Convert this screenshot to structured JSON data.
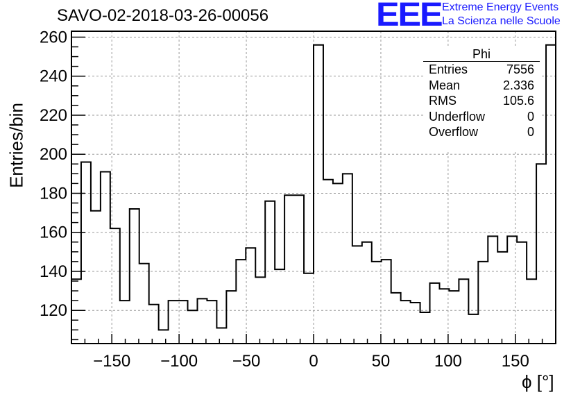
{
  "title": "SAVO-02-2018-03-26-00056",
  "logo": {
    "text": "EEE",
    "line1": "Extreme Energy Events",
    "line2": "La Scienza nelle Scuole",
    "color": "#1a1aff"
  },
  "stats": {
    "name": "Phi",
    "rows": [
      {
        "label": "Entries",
        "value": "7556"
      },
      {
        "label": "Mean",
        "value": "2.336"
      },
      {
        "label": "RMS",
        "value": "105.6"
      },
      {
        "label": "Underflow",
        "value": "0"
      },
      {
        "label": "Overflow",
        "value": "0"
      }
    ]
  },
  "chart_data": {
    "type": "bar",
    "histogram": "step",
    "title": "SAVO-02-2018-03-26-00056",
    "xlabel": "ϕ [°]",
    "ylabel": "Entries/bin",
    "xlim": [
      -180,
      180
    ],
    "ylim": [
      103,
      263
    ],
    "bin_width": 7.2,
    "grid": true,
    "xticks": [
      -150,
      -100,
      -50,
      0,
      50,
      100,
      150
    ],
    "xtick_labels": [
      "−150",
      "−100",
      "−50",
      "0",
      "50",
      "100",
      "150"
    ],
    "yticks": [
      120,
      140,
      160,
      180,
      200,
      220,
      240,
      260
    ],
    "ytick_labels": [
      "120",
      "140",
      "160",
      "180",
      "200",
      "220",
      "240",
      "260"
    ],
    "values": [
      136,
      196,
      171,
      191,
      162,
      125,
      172,
      144,
      123,
      110,
      125,
      125,
      120,
      126,
      125,
      111,
      130,
      146,
      152,
      137,
      176,
      141,
      179,
      179,
      139,
      256,
      187,
      185,
      190,
      153,
      155,
      145,
      146,
      129,
      125,
      124,
      119,
      134,
      131,
      130,
      136,
      118,
      145,
      158,
      150,
      158,
      155,
      136,
      195,
      256
    ]
  }
}
